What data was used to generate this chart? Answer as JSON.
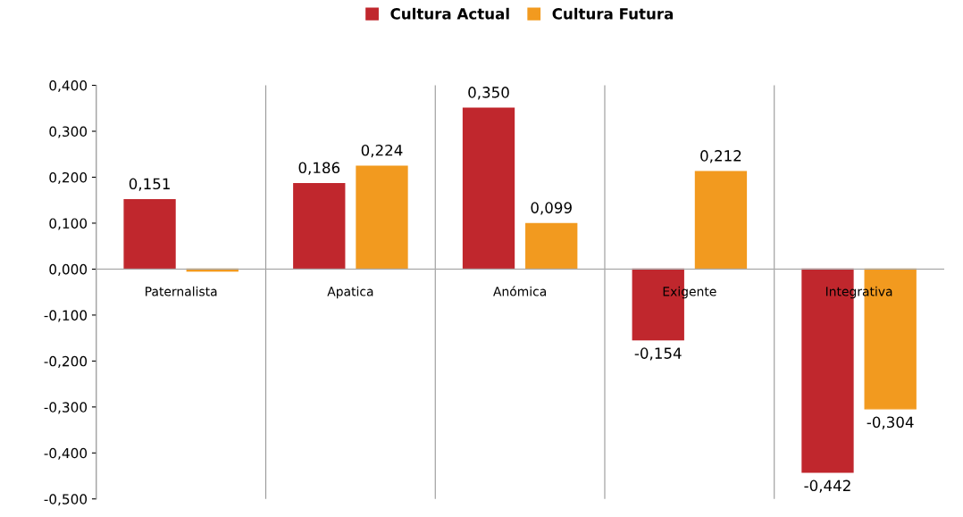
{
  "chart_data": {
    "type": "bar",
    "categories": [
      "Paternalista",
      "Apatica",
      "Anómica",
      "Exigente",
      "Integrativa"
    ],
    "series": [
      {
        "name": "Cultura Actual",
        "color": "#c0272d",
        "values": [
          0.151,
          0.186,
          0.35,
          -0.154,
          -0.442
        ],
        "value_labels": [
          "0,151",
          "0,186",
          "0,350",
          "-0,154",
          "-0,442"
        ]
      },
      {
        "name": "Cultura Futura",
        "color": "#f29a1f",
        "values": [
          -0.004,
          0.224,
          0.099,
          0.212,
          -0.304
        ],
        "value_labels": [
          null,
          "0,224",
          "0,099",
          "0,212",
          "-0,304"
        ]
      }
    ],
    "ylim": [
      -0.5,
      0.4
    ],
    "yticks": [
      {
        "value": -0.5,
        "label": "-0,500"
      },
      {
        "value": -0.4,
        "label": "-0,400"
      },
      {
        "value": -0.3,
        "label": "-0,300"
      },
      {
        "value": -0.2,
        "label": "-0,200"
      },
      {
        "value": -0.1,
        "label": "-0,100"
      },
      {
        "value": 0,
        "label": "0,000"
      },
      {
        "value": 0.1,
        "label": "0,100"
      },
      {
        "value": 0.2,
        "label": "0,200"
      },
      {
        "value": 0.3,
        "label": "0,300"
      },
      {
        "value": 0.4,
        "label": "0,400"
      }
    ],
    "grid": "x",
    "legend": "top"
  }
}
